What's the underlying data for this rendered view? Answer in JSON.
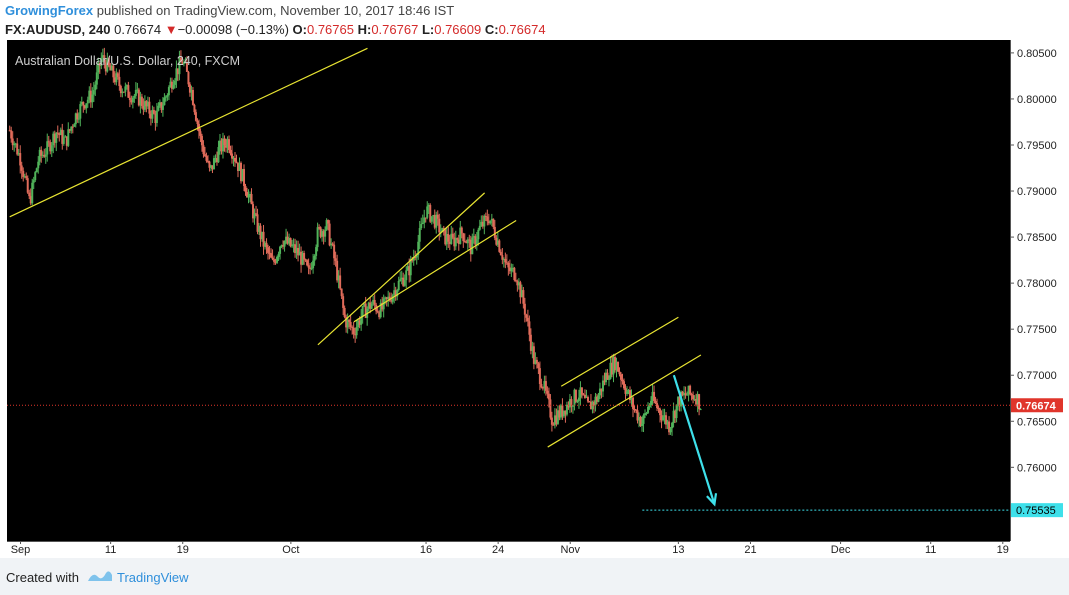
{
  "header": {
    "author": "GrowingForex",
    "published_text": "published on TradingView.com, November 10, 2017 18:46 IST",
    "symbol": "FX:AUDUSD, 240",
    "last": "0.76674",
    "change_arrow": "▼",
    "change": "−0.00098 (−0.13%)",
    "o_label": "O:",
    "o_value": "0.76765",
    "h_label": "H:",
    "h_value": "0.76767",
    "l_label": "L:",
    "l_value": "0.76609",
    "c_label": "C:",
    "c_value": "0.76674"
  },
  "footer": {
    "created_text": "Created with",
    "brand": "TradingView"
  },
  "chart_data": {
    "type": "candlestick",
    "series_label": "Australian Dollar/U.S. Dollar, 240, FXCM",
    "y_range": [
      0.752,
      0.8064
    ],
    "y_ticks": [
      0.805,
      0.8,
      0.795,
      0.79,
      0.785,
      0.78,
      0.775,
      0.77,
      0.765,
      0.76
    ],
    "y_tick_labels": [
      "0.80500",
      "0.80000",
      "0.79500",
      "0.79000",
      "0.78500",
      "0.78000",
      "0.77500",
      "0.77000",
      "0.76500",
      "0.76000"
    ],
    "x_labels": [
      {
        "label": "Sep",
        "day": 0
      },
      {
        "label": "11",
        "day": 10
      },
      {
        "label": "19",
        "day": 18
      },
      {
        "label": "Oct",
        "day": 30
      },
      {
        "label": "16",
        "day": 45
      },
      {
        "label": "24",
        "day": 53
      },
      {
        "label": "Nov",
        "day": 61
      },
      {
        "label": "13",
        "day": 73
      },
      {
        "label": "21",
        "day": 81
      },
      {
        "label": "Dec",
        "day": 91
      },
      {
        "label": "11",
        "day": 101
      },
      {
        "label": "19",
        "day": 109
      }
    ],
    "x_range_days": [
      -1.5,
      109.8
    ],
    "price_path": [
      [
        -1.2,
        0.7966
      ],
      [
        0.0,
        0.7935
      ],
      [
        1.0,
        0.7888
      ],
      [
        2.0,
        0.7935
      ],
      [
        3.0,
        0.7946
      ],
      [
        4.0,
        0.7965
      ],
      [
        5.0,
        0.7953
      ],
      [
        6.0,
        0.798
      ],
      [
        7.0,
        0.7996
      ],
      [
        8.0,
        0.8005
      ],
      [
        9.0,
        0.8045
      ],
      [
        10.0,
        0.803
      ],
      [
        11.0,
        0.8015
      ],
      [
        12.0,
        0.8006
      ],
      [
        13.0,
        0.8002
      ],
      [
        14.0,
        0.799
      ],
      [
        15.0,
        0.798
      ],
      [
        16.0,
        0.8
      ],
      [
        17.0,
        0.8025
      ],
      [
        18.0,
        0.8042
      ],
      [
        19.0,
        0.8008
      ],
      [
        20.0,
        0.7955
      ],
      [
        21.0,
        0.792
      ],
      [
        22.0,
        0.7945
      ],
      [
        23.0,
        0.7955
      ],
      [
        24.0,
        0.7932
      ],
      [
        25.0,
        0.7905
      ],
      [
        26.0,
        0.787
      ],
      [
        27.0,
        0.7842
      ],
      [
        28.0,
        0.782
      ],
      [
        29.0,
        0.7848
      ],
      [
        30.0,
        0.784
      ],
      [
        31.0,
        0.783
      ],
      [
        32.0,
        0.781
      ],
      [
        33.0,
        0.7855
      ],
      [
        34.0,
        0.7862
      ],
      [
        35.0,
        0.7818
      ],
      [
        36.0,
        0.776
      ],
      [
        37.0,
        0.7748
      ],
      [
        38.0,
        0.7768
      ],
      [
        39.0,
        0.7778
      ],
      [
        40.0,
        0.777
      ],
      [
        41.0,
        0.7785
      ],
      [
        42.0,
        0.78
      ],
      [
        43.0,
        0.7812
      ],
      [
        44.0,
        0.784
      ],
      [
        45.0,
        0.788
      ],
      [
        46.0,
        0.7868
      ],
      [
        47.0,
        0.785
      ],
      [
        48.0,
        0.7845
      ],
      [
        49.0,
        0.7855
      ],
      [
        50.0,
        0.7838
      ],
      [
        51.0,
        0.786
      ],
      [
        52.0,
        0.7872
      ],
      [
        53.0,
        0.7845
      ],
      [
        54.0,
        0.7815
      ],
      [
        55.0,
        0.781
      ],
      [
        56.0,
        0.777
      ],
      [
        57.0,
        0.7715
      ],
      [
        58.0,
        0.769
      ],
      [
        59.0,
        0.7652
      ],
      [
        60.0,
        0.766
      ],
      [
        61.0,
        0.7672
      ],
      [
        62.0,
        0.768
      ],
      [
        63.0,
        0.7665
      ],
      [
        64.0,
        0.7675
      ],
      [
        65.0,
        0.77
      ],
      [
        66.0,
        0.7715
      ],
      [
        67.0,
        0.769
      ],
      [
        68.0,
        0.7665
      ],
      [
        69.0,
        0.7648
      ],
      [
        70.0,
        0.7675
      ],
      [
        71.0,
        0.766
      ],
      [
        72.0,
        0.7645
      ],
      [
        73.0,
        0.7672
      ],
      [
        74.0,
        0.768
      ],
      [
        75.0,
        0.7677
      ],
      [
        75.5,
        0.7667
      ]
    ],
    "trend_lines": [
      {
        "from": [
          -1.2,
          0.7872
        ],
        "to": [
          38.5,
          0.8055
        ]
      },
      {
        "from": [
          33.0,
          0.7733
        ],
        "to": [
          51.5,
          0.7898
        ]
      },
      {
        "from": [
          37.0,
          0.7758
        ],
        "to": [
          55.0,
          0.7868
        ]
      },
      {
        "from": [
          60.0,
          0.7688
        ],
        "to": [
          73.0,
          0.7763
        ]
      },
      {
        "from": [
          58.5,
          0.7622
        ],
        "to": [
          75.5,
          0.7722
        ]
      }
    ],
    "projection_arrow": {
      "from": [
        72.5,
        0.77
      ],
      "to": [
        77.0,
        0.756
      ]
    },
    "current_price": {
      "value": 0.76674,
      "label": "0.76674",
      "color": "#e0352b"
    },
    "target_level": {
      "value": 0.75535,
      "label": "0.75535",
      "from_day": 69.0,
      "color": "#3ee0ea"
    },
    "colors": {
      "background": "#000000",
      "up_candle": "#51b35a",
      "down_candle": "#e06b5a",
      "trend_line": "#e8e432",
      "arrow": "#3ee0ea",
      "axis_panel": "#ffffff",
      "axis_text": "#222222"
    }
  }
}
